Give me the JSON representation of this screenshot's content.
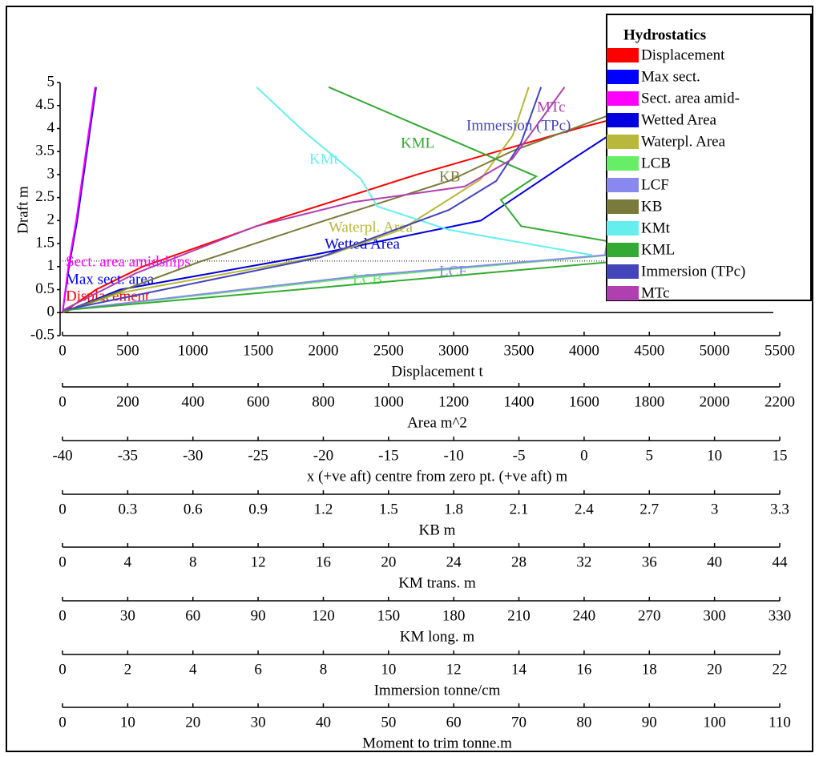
{
  "chart_data": {
    "type": "line",
    "y_label": "Draft m",
    "ylim": [
      -0.5,
      5
    ],
    "yticks": [
      -0.5,
      0,
      0.5,
      1,
      1.5,
      2,
      2.5,
      3,
      3.5,
      4,
      4.5,
      5
    ],
    "legend_title": "Hydrostatics",
    "legend_position": "upper right",
    "reference_draft": 1.12,
    "axes": [
      {
        "label": "Displacement t",
        "xlim": [
          0,
          5500
        ],
        "xticks": [
          0,
          500,
          1000,
          1500,
          2000,
          2500,
          3000,
          3500,
          4000,
          4500,
          5000,
          5500
        ]
      },
      {
        "label": "Area m^2",
        "xlim": [
          0,
          2200
        ],
        "xticks": [
          0,
          200,
          400,
          600,
          800,
          1000,
          1200,
          1400,
          1600,
          1800,
          2000,
          2200
        ]
      },
      {
        "label": "x (+ve aft) centre from zero pt. (+ve aft) m",
        "xlim": [
          -40,
          15
        ],
        "xticks": [
          -40,
          -35,
          -30,
          -25,
          -20,
          -15,
          -10,
          -5,
          0,
          5,
          10,
          15
        ]
      },
      {
        "label": "KB m",
        "xlim": [
          0,
          3.3
        ],
        "xticks": [
          0,
          0.3,
          0.6,
          0.9,
          1.2,
          1.5,
          1.8,
          2.1,
          2.4,
          2.7,
          3,
          3.3
        ]
      },
      {
        "label": "KM trans. m",
        "xlim": [
          0,
          44
        ],
        "xticks": [
          0,
          4,
          8,
          12,
          16,
          20,
          24,
          28,
          32,
          36,
          40,
          44
        ]
      },
      {
        "label": "KM long. m",
        "xlim": [
          0,
          330
        ],
        "xticks": [
          0,
          30,
          60,
          90,
          120,
          150,
          180,
          210,
          240,
          270,
          300,
          330
        ]
      },
      {
        "label": "Immersion tonne/cm",
        "xlim": [
          0,
          22
        ],
        "xticks": [
          0,
          2,
          4,
          6,
          8,
          10,
          12,
          14,
          16,
          18,
          20,
          22
        ]
      },
      {
        "label": "Moment to trim tonne.m",
        "xlim": [
          0,
          110
        ],
        "xticks": [
          0,
          10,
          20,
          30,
          40,
          50,
          60,
          70,
          80,
          90,
          100,
          110
        ]
      }
    ],
    "series": [
      {
        "name": "Displacement",
        "annotation": "Displacement",
        "color": "#ff0000",
        "axis": 0,
        "x": [
          0,
          258,
          615,
          1610,
          2717,
          3946,
          5163
        ],
        "y": [
          0,
          0.5,
          1,
          2,
          3,
          4,
          4.9
        ]
      },
      {
        "name": "Max sect.",
        "annotation": "Max sect. area",
        "color": "#0000ff",
        "axis": 1,
        "x": [
          0,
          20,
          45,
          75,
          103
        ],
        "y": [
          0,
          1,
          2,
          3.5,
          4.9
        ]
      },
      {
        "name": "Sect. area amid-",
        "annotation": "Sect. area amidships",
        "color": "#ff00ff",
        "axis": 1,
        "x": [
          0,
          18,
          42,
          72,
          100
        ],
        "y": [
          0,
          1,
          2,
          3.5,
          4.9
        ]
      },
      {
        "name": "Wetted Area",
        "annotation": "Wetted Area",
        "color": "#0000e0",
        "axis": 1,
        "x": [
          0,
          177,
          767,
          1283,
          1565,
          1676,
          1897
        ],
        "y": [
          0,
          0.5,
          1.25,
          2,
          3.34,
          3.85,
          4.88
        ]
      },
      {
        "name": "Waterpl. Area",
        "annotation": "Waterpl. Area",
        "color": "#b8b83a",
        "axis": 1,
        "x": [
          0,
          177,
          816,
          1037,
          1283,
          1381,
          1430
        ],
        "y": [
          0,
          0.43,
          1.25,
          1.8,
          2.9,
          3.85,
          4.9
        ]
      },
      {
        "name": "LCB",
        "annotation": "LCB",
        "color": "#66ee66",
        "axis": 2,
        "x": [
          -39.9,
          -17.1,
          1.9
        ],
        "y": [
          0.05,
          0.77,
          1.25
        ]
      },
      {
        "name": "LCF",
        "annotation": "LCF",
        "color": "#8888ee",
        "axis": 2,
        "x": [
          -40,
          -17.1,
          1.6,
          1.9,
          2.8,
          4.4,
          5.6
        ],
        "y": [
          0.05,
          0.8,
          1.25,
          1.8,
          2.83,
          3.85,
          4.88
        ]
      },
      {
        "name": "KB",
        "annotation": "KB",
        "color": "#7a7a3a",
        "axis": 3,
        "x": [
          0,
          0.634,
          1.187,
          1.777,
          2.07,
          2.85
        ],
        "y": [
          0,
          1.11,
          1.97,
          2.86,
          3.51,
          4.88
        ]
      },
      {
        "name": "KMt",
        "annotation": "KMt",
        "color": "#66eeee",
        "axis": 4,
        "x": [
          11.9,
          14.8,
          18.3,
          19.3,
          23.7,
          32.5
        ],
        "y": [
          4.9,
          3.94,
          2.91,
          2.31,
          1.8,
          1.25
        ]
      },
      {
        "name": "KML",
        "annotation": "KML",
        "color": "#33aa33",
        "axis": 5,
        "x": [
          122.4,
          218,
          201.7,
          211,
          288,
          0
        ],
        "y": [
          4.9,
          2.96,
          2.45,
          1.88,
          1.25,
          0.05
        ]
      },
      {
        "name": "Immersion (TPc)",
        "annotation": "Immersion (TPc)",
        "color": "#4444bb",
        "axis": 6,
        "x": [
          0,
          7.9,
          11.85,
          13.3,
          14.06,
          14.68
        ],
        "y": [
          0.05,
          1.2,
          2.23,
          2.86,
          3.68,
          4.9
        ]
      },
      {
        "name": "MTc",
        "annotation": "MTc",
        "color": "#b040b0",
        "axis": 7,
        "x": [
          0,
          11.3,
          29.7,
          44.5,
          61.7,
          69,
          77
        ],
        "y": [
          0.05,
          0.86,
          1.88,
          2.4,
          2.74,
          3.34,
          4.9
        ]
      }
    ]
  }
}
